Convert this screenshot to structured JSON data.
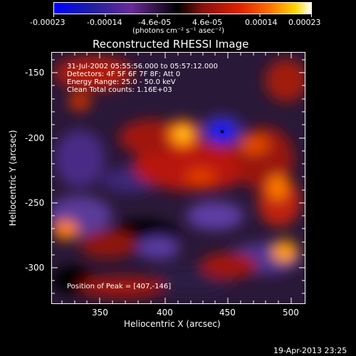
{
  "colorbar": {
    "tick_labels": [
      "-0.00023",
      "-0.00014",
      "-4.6e-05",
      "4.6e-05",
      "0.00014",
      "0.00023"
    ],
    "units": "(photons cm⁻² s⁻¹ asec⁻²)"
  },
  "plot": {
    "title": "Reconstructed RHESSI Image",
    "xlabel": "Heliocentric X (arcsec)",
    "ylabel": "Heliocentric Y (arcsec)",
    "xticks": [
      "350",
      "400",
      "450",
      "500"
    ],
    "yticks": [
      "-150",
      "-200",
      "-250",
      "-300"
    ],
    "info_lines": [
      "31-Jul-2002 05:55:56.000 to 05:57:12.000",
      "Detectors: 4F 5F 6F 7F 8F; Att 0",
      "Energy Range: 25.0 - 50.0 keV",
      "Clean    Total counts: 1.16E+03"
    ],
    "peak_text": "Position of Peak = [407,-146]"
  },
  "footer": {
    "timestamp": "19-Apr-2013 23:25"
  },
  "chart_data": {
    "type": "heatmap",
    "title": "Reconstructed RHESSI Image",
    "xlabel": "Heliocentric X (arcsec)",
    "ylabel": "Heliocentric Y (arcsec)",
    "xlim": [
      312,
      510
    ],
    "ylim": [
      -325,
      -135
    ],
    "color_range": [
      -0.00023,
      0.00023
    ],
    "colorbar_units": "photons cm^-2 s^-1 asec^-2",
    "peak": [
      407,
      -146
    ],
    "grid": false
  }
}
